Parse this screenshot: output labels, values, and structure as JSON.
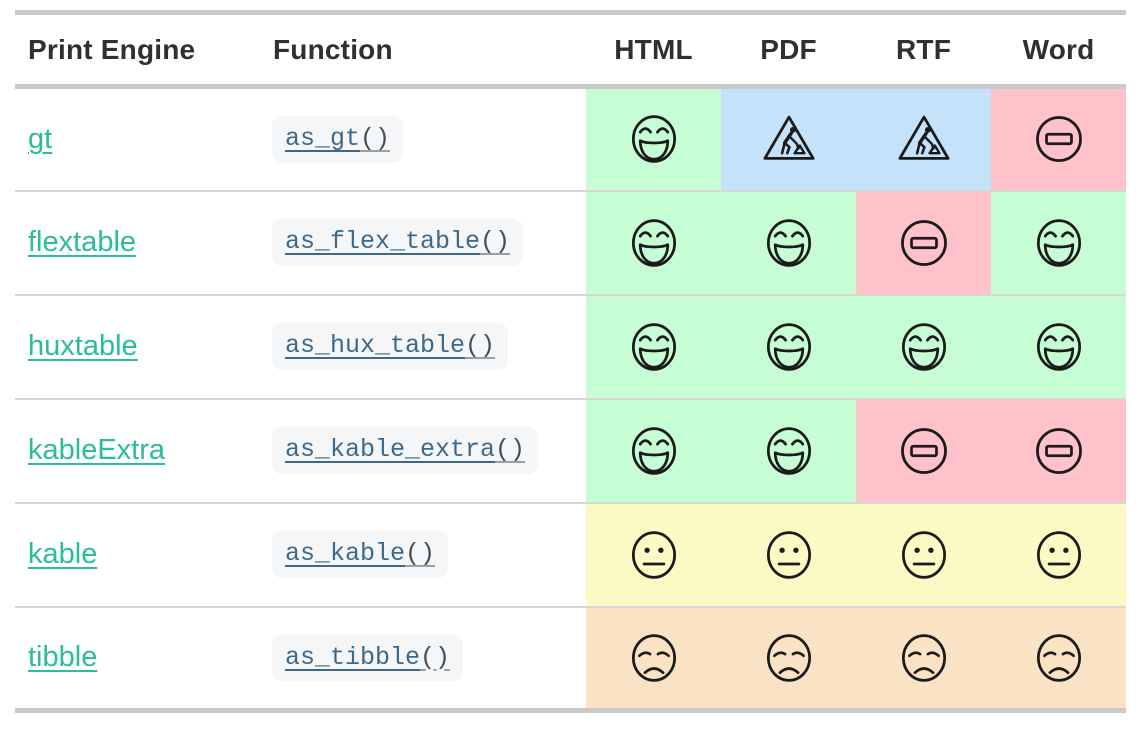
{
  "columns": [
    "Print Engine",
    "Function",
    "HTML",
    "PDF",
    "RTF",
    "Word"
  ],
  "rows": [
    {
      "engine": "gt",
      "func": "as_gt",
      "parens": "()",
      "cells": [
        {
          "col": "HTML",
          "icon": "laughing-face",
          "bg": "green"
        },
        {
          "col": "PDF",
          "icon": "construction-sign",
          "bg": "blue"
        },
        {
          "col": "RTF",
          "icon": "construction-sign",
          "bg": "blue"
        },
        {
          "col": "Word",
          "icon": "no-entry",
          "bg": "pink"
        }
      ]
    },
    {
      "engine": "flextable",
      "func": "as_flex_table",
      "parens": "()",
      "cells": [
        {
          "col": "HTML",
          "icon": "laughing-face",
          "bg": "green"
        },
        {
          "col": "PDF",
          "icon": "laughing-face",
          "bg": "green"
        },
        {
          "col": "RTF",
          "icon": "no-entry",
          "bg": "pink"
        },
        {
          "col": "Word",
          "icon": "laughing-face",
          "bg": "green"
        }
      ]
    },
    {
      "engine": "huxtable",
      "func": "as_hux_table",
      "parens": "()",
      "cells": [
        {
          "col": "HTML",
          "icon": "laughing-face",
          "bg": "green"
        },
        {
          "col": "PDF",
          "icon": "laughing-face",
          "bg": "green"
        },
        {
          "col": "RTF",
          "icon": "laughing-face",
          "bg": "green"
        },
        {
          "col": "Word",
          "icon": "laughing-face",
          "bg": "green"
        }
      ]
    },
    {
      "engine": "kableExtra",
      "func": "as_kable_extra",
      "parens": "()",
      "cells": [
        {
          "col": "HTML",
          "icon": "laughing-face",
          "bg": "green"
        },
        {
          "col": "PDF",
          "icon": "laughing-face",
          "bg": "green"
        },
        {
          "col": "RTF",
          "icon": "no-entry",
          "bg": "pink"
        },
        {
          "col": "Word",
          "icon": "no-entry",
          "bg": "pink"
        }
      ]
    },
    {
      "engine": "kable",
      "func": "as_kable",
      "parens": "()",
      "cells": [
        {
          "col": "HTML",
          "icon": "neutral-face",
          "bg": "yellow"
        },
        {
          "col": "PDF",
          "icon": "neutral-face",
          "bg": "yellow"
        },
        {
          "col": "RTF",
          "icon": "neutral-face",
          "bg": "yellow"
        },
        {
          "col": "Word",
          "icon": "neutral-face",
          "bg": "yellow"
        }
      ]
    },
    {
      "engine": "tibble",
      "func": "as_tibble",
      "parens": "()",
      "cells": [
        {
          "col": "HTML",
          "icon": "sad-face",
          "bg": "orange"
        },
        {
          "col": "PDF",
          "icon": "sad-face",
          "bg": "orange"
        },
        {
          "col": "RTF",
          "icon": "sad-face",
          "bg": "orange"
        },
        {
          "col": "Word",
          "icon": "sad-face",
          "bg": "orange"
        }
      ]
    }
  ],
  "colors": {
    "green": "#c6fdd5",
    "blue": "#c4e2fa",
    "pink": "#ffc2c8",
    "yellow": "#fcfac4",
    "orange": "#fae3c4",
    "engine_link": "#2abd9a",
    "function_link": "#3c698c",
    "header_text": "#2d3134",
    "border": "#cacaca",
    "row_divider": "#d6d6d6",
    "code_bg": "#f5f6f7"
  }
}
